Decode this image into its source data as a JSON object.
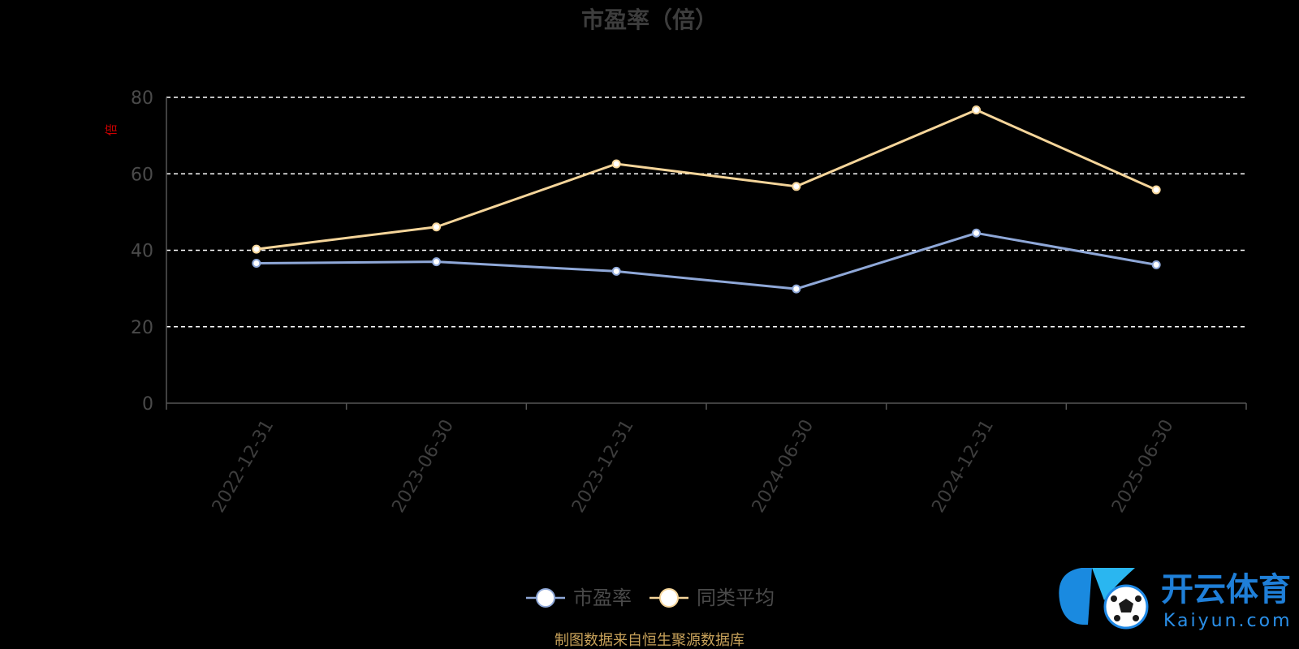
{
  "chart_data": {
    "type": "line",
    "title": "市盈率（倍）",
    "unit_label": "倍",
    "categories": [
      "2022-12-31",
      "2023-06-30",
      "2023-12-31",
      "2024-06-30",
      "2024-12-31",
      "2025-06-30"
    ],
    "ylim": [
      0,
      80
    ],
    "yticks": [
      0,
      20,
      40,
      60,
      80
    ],
    "grid": true,
    "legend_position": "bottom-center",
    "series": [
      {
        "name": "市盈率",
        "values": [
          36.6,
          37.0,
          34.5,
          29.9,
          44.5,
          36.2
        ],
        "color": "#8fa8d8"
      },
      {
        "name": "同类平均",
        "values": [
          40.3,
          46.1,
          62.6,
          56.7,
          76.7,
          55.8
        ],
        "color": "#f5d59a"
      }
    ],
    "source": "制图数据来自恒生聚源数据库"
  },
  "logo": {
    "cn": "开云体育",
    "en": "Kaiyun.com"
  },
  "colors": {
    "background": "#000000",
    "grid": "#ffffff",
    "axis": "#555555"
  }
}
